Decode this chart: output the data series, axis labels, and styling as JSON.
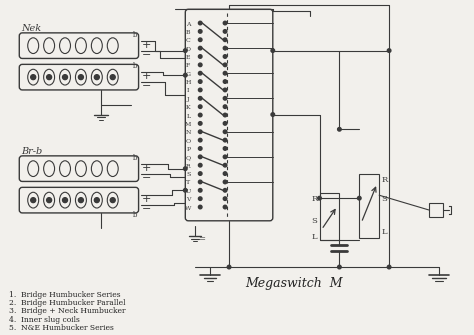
{
  "bg_color": "#f2f0ec",
  "line_color": "#3a3a3a",
  "green_color": "#3d6b4a",
  "text_color": "#222222",
  "title": "Megaswitch  M",
  "label_neck": "Nek",
  "label_bridge": "Br-b",
  "legend": [
    "1.  Bridge Humbucker Series",
    "2.  Bridge Humbucker Parallel",
    "3.  Bridge + Neck Humbucker",
    "4.  Inner slug coils",
    "5.  N&E Humbucker Series"
  ],
  "figsize": [
    4.74,
    3.35
  ],
  "dpi": 100
}
